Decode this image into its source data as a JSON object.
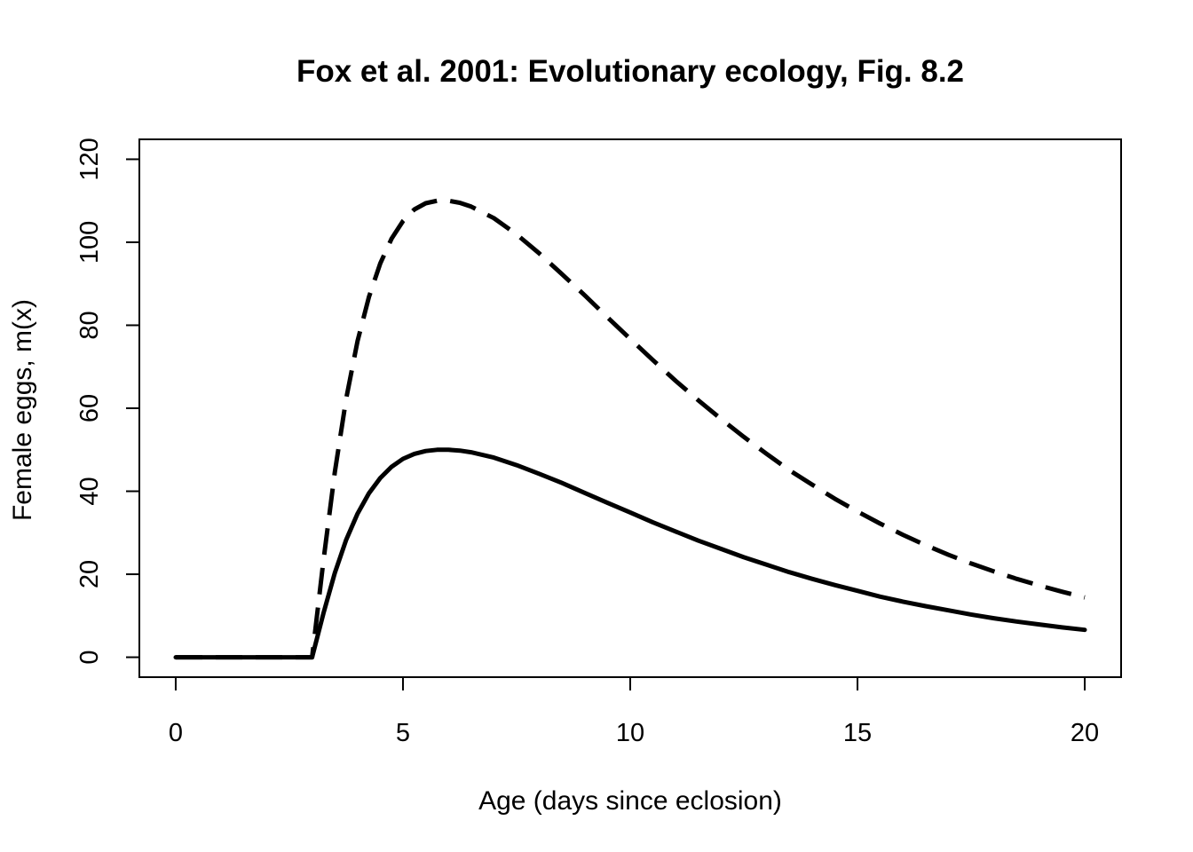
{
  "chart_data": {
    "type": "line",
    "title": "Fox et al. 2001: Evolutionary ecology, Fig. 8.2",
    "xlabel": "Age (days since eclosion)",
    "ylabel": "Female eggs, m(x)",
    "xlim": [
      -0.8,
      20.8
    ],
    "ylim": [
      -4.8,
      124.8
    ],
    "xticks": [
      0,
      5,
      10,
      15,
      20
    ],
    "yticks": [
      0,
      20,
      40,
      60,
      80,
      100,
      120
    ],
    "grid": false,
    "legend": "none",
    "x": [
      0,
      1,
      2,
      2.99,
      3,
      3.25,
      3.5,
      3.75,
      4,
      4.25,
      4.5,
      4.75,
      5,
      5.25,
      5.5,
      5.75,
      6,
      6.25,
      6.5,
      7,
      7.5,
      8,
      8.5,
      9,
      9.5,
      10,
      10.5,
      11,
      11.5,
      12,
      12.5,
      13,
      13.5,
      14,
      14.5,
      15,
      15.5,
      16,
      16.5,
      17,
      17.5,
      18,
      18.5,
      19,
      19.5,
      20
    ],
    "series": [
      {
        "style": "solid",
        "color": "#000000",
        "values": [
          0,
          0,
          0,
          0,
          0,
          10.6,
          20.3,
          28.3,
          34.6,
          39.5,
          43.2,
          45.9,
          47.8,
          49.0,
          49.7,
          50.0,
          50.0,
          49.8,
          49.4,
          48.1,
          46.3,
          44.2,
          42.0,
          39.6,
          37.2,
          34.9,
          32.5,
          30.3,
          28.1,
          26.1,
          24.1,
          22.3,
          20.5,
          18.9,
          17.4,
          16.0,
          14.6,
          13.4,
          12.3,
          11.3,
          10.3,
          9.4,
          8.6,
          7.9,
          7.2,
          6.6
        ]
      },
      {
        "style": "dashed",
        "color": "#000000",
        "values": [
          0,
          0,
          0,
          0,
          0,
          23.3,
          44.6,
          62.3,
          76.2,
          86.8,
          94.9,
          100.9,
          105.1,
          107.9,
          109.4,
          110.0,
          110.0,
          109.5,
          108.6,
          105.8,
          101.9,
          97.3,
          92.3,
          87.2,
          81.9,
          76.7,
          71.6,
          66.6,
          61.9,
          57.4,
          53.1,
          49.0,
          45.1,
          41.6,
          38.2,
          35.1,
          32.2,
          29.5,
          27.0,
          24.7,
          22.6,
          20.7,
          18.9,
          17.3,
          15.8,
          14.4
        ]
      }
    ]
  }
}
